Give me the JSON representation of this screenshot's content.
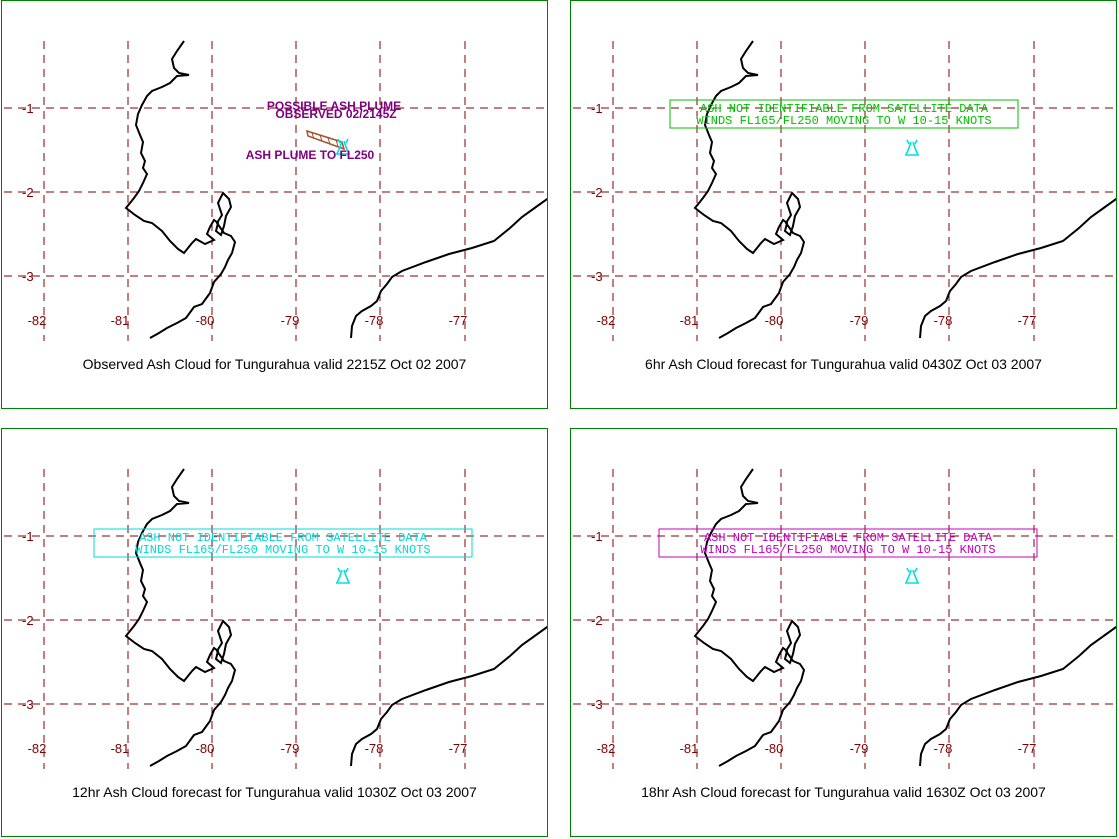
{
  "map_axes": {
    "x_ticks": [
      "-82",
      "-81",
      "-80",
      "-79",
      "-78",
      "-77"
    ],
    "y_ticks": [
      "-1",
      "-2",
      "-3"
    ]
  },
  "colors": {
    "panel_border": "#008000",
    "grid": "#800000",
    "coastline": "#000000",
    "volcano_marker": "#00E0E0",
    "plume": "#A0522D",
    "observed_labels": "#800080"
  },
  "panels": [
    {
      "title": "Observed Ash Cloud for Tungurahua valid 2215Z Oct 02 2007",
      "labels": {
        "possible": "POSSIBLE ASH PLUME",
        "observed": "OBSERVED 02/2145Z",
        "plume_to": "ASH PLUME TO FL250"
      }
    },
    {
      "title": "6hr Ash Cloud forecast for Tungurahua valid 0430Z Oct 03 2007",
      "box_color": "#00C000",
      "box_line1": "ASH NOT IDENTIFIABLE FROM SATELLITE DATA",
      "box_line2": "WINDS FL165/FL250 MOVING TO W 10-15 KNOTS"
    },
    {
      "title": "12hr Ash Cloud forecast for Tungurahua valid 1030Z Oct 03 2007",
      "box_color": "#00D8D8",
      "box_line1": "ASH NOT IDENTIFIABLE FROM SATELLITE DATA",
      "box_line2": "WINDS FL165/FL250 MOVING TO W 10-15 KNOTS"
    },
    {
      "title": "18hr Ash Cloud forecast for Tungurahua valid 1630Z Oct 03 2007",
      "box_color": "#C000C0",
      "box_line1": "ASH NOT IDENTIFIABLE FROM SATELLITE DATA",
      "box_line2": "WINDS FL165/FL250 MOVING TO W 10-15 KNOTS"
    }
  ]
}
